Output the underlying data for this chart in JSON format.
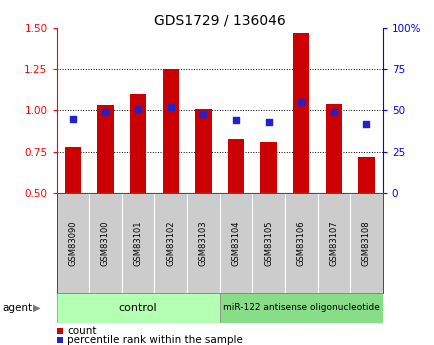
{
  "title": "GDS1729 / 136046",
  "samples": [
    "GSM83090",
    "GSM83100",
    "GSM83101",
    "GSM83102",
    "GSM83103",
    "GSM83104",
    "GSM83105",
    "GSM83106",
    "GSM83107",
    "GSM83108"
  ],
  "count_values": [
    0.78,
    1.03,
    1.1,
    1.25,
    1.01,
    0.83,
    0.81,
    1.47,
    1.04,
    0.72
  ],
  "percentile_values": [
    45,
    49,
    51,
    52,
    48,
    44,
    43,
    55,
    49,
    42
  ],
  "ylim_left": [
    0.5,
    1.5
  ],
  "ylim_right": [
    0,
    100
  ],
  "yticks_left": [
    0.5,
    0.75,
    1.0,
    1.25,
    1.5
  ],
  "yticks_right": [
    0,
    25,
    50,
    75,
    100
  ],
  "ytick_labels_right": [
    "0",
    "25",
    "50",
    "75",
    "100%"
  ],
  "bar_color": "#CC0000",
  "dot_color": "#2222CC",
  "bar_width": 0.5,
  "control_samples": 5,
  "control_label": "control",
  "treatment_label": "miR-122 antisense oligonucleotide",
  "agent_label": "agent",
  "legend_count": "count",
  "legend_percentile": "percentile rank within the sample",
  "sample_bg": "#cccccc",
  "control_bg": "#b3ffb3",
  "treatment_bg": "#88dd88"
}
